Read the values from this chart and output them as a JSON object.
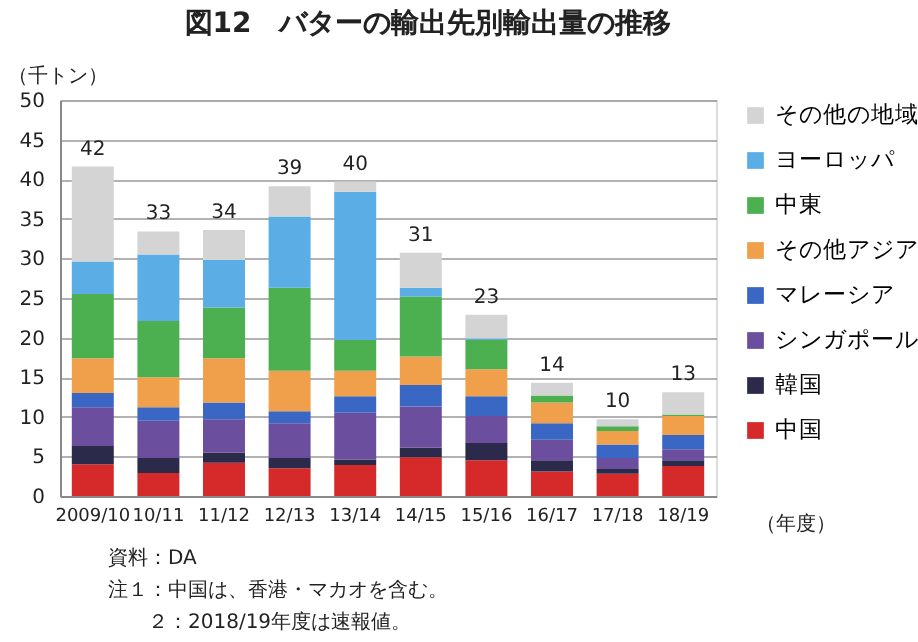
{
  "chart_data": {
    "type": "bar",
    "title": "図12　バターの輸出先別輸出量の推移",
    "ylabel": "（千トン）",
    "xlabel": "（年度）",
    "categories": [
      "2009/10",
      "10/11",
      "11/12",
      "12/13",
      "13/14",
      "14/15",
      "15/16",
      "16/17",
      "17/18",
      "18/19"
    ],
    "stacked": true,
    "series": [
      {
        "name": "中国",
        "color": "#d62a2a",
        "values": [
          4.0,
          2.9,
          4.2,
          3.5,
          3.9,
          4.9,
          4.5,
          3.1,
          2.8,
          3.8
        ]
      },
      {
        "name": "韓国",
        "color": "#2b2a4a",
        "values": [
          2.3,
          1.9,
          1.3,
          1.3,
          0.7,
          1.2,
          2.2,
          1.4,
          0.6,
          0.7
        ]
      },
      {
        "name": "シンガポール",
        "color": "#6b4f9e",
        "values": [
          4.9,
          4.7,
          4.2,
          4.4,
          5.9,
          5.2,
          3.4,
          2.6,
          1.4,
          1.4
        ]
      },
      {
        "name": "マレーシア",
        "color": "#3a66c4",
        "values": [
          1.8,
          1.7,
          2.1,
          1.5,
          2.1,
          2.7,
          2.5,
          2.1,
          1.7,
          1.8
        ]
      },
      {
        "name": "その他アジア",
        "color": "#f0a04a",
        "values": [
          4.4,
          3.8,
          5.6,
          5.1,
          3.2,
          3.6,
          3.4,
          2.6,
          1.7,
          2.4
        ]
      },
      {
        "name": "中東",
        "color": "#4caf50",
        "values": [
          8.1,
          7.1,
          6.4,
          10.5,
          3.9,
          7.6,
          3.7,
          0.9,
          0.6,
          0.2
        ]
      },
      {
        "name": "ヨーロッパ",
        "color": "#5aaee5",
        "values": [
          4.1,
          8.4,
          6.0,
          9.0,
          18.7,
          1.1,
          0.2,
          null,
          null,
          null
        ]
      },
      {
        "name": "その他の地域",
        "color": "#d4d4d4",
        "values": [
          12.0,
          2.9,
          3.8,
          3.8,
          1.3,
          4.4,
          3.0,
          1.6,
          0.9,
          2.8
        ]
      }
    ],
    "totals": [
      "42",
      "33",
      "34",
      "39",
      "40",
      "31",
      "23",
      "14",
      "10",
      "13"
    ],
    "ylim": [
      0,
      50
    ],
    "yticks": [
      0,
      5,
      10,
      15,
      20,
      25,
      30,
      35,
      40,
      45,
      50
    ],
    "grid": "y",
    "legend": "right",
    "annotations": [
      "資料：DA",
      "注１：中国は、香港・マカオを含む。",
      "２：2018/19年度は速報値。"
    ]
  }
}
